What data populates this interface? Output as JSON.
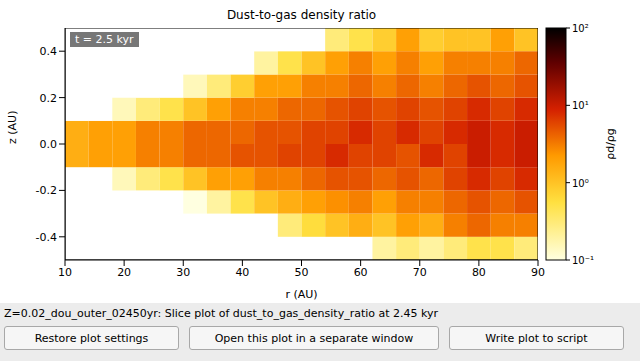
{
  "chart_data": {
    "type": "heatmap",
    "title": "Dust-to-gas density ratio",
    "x_label": "r (AU)",
    "y_label": "z (AU)",
    "annotation": "t = 2.5 kyr",
    "xlim": [
      10,
      90
    ],
    "xticks": [
      10,
      20,
      30,
      40,
      50,
      60,
      70,
      80,
      90
    ],
    "ylim": [
      -0.5,
      0.5
    ],
    "yticks": [
      -0.4,
      -0.2,
      {
        "value": 0,
        "label": "0.0"
      },
      0.2,
      0.4
    ],
    "r_edges": [
      10,
      14,
      18,
      22,
      26,
      30,
      34,
      38,
      42,
      46,
      50,
      54,
      58,
      62,
      66,
      70,
      74,
      78,
      82,
      86,
      90
    ],
    "z_edges": [
      -0.5,
      -0.4,
      -0.3,
      -0.2,
      -0.1,
      0,
      0.1,
      0.2,
      0.3,
      0.4,
      0.5
    ],
    "cells": [
      [
        0.01,
        0.01,
        0.01,
        0.01,
        0.01,
        0.01,
        0.01,
        0.01,
        0.01,
        0.01,
        0.01,
        0.01,
        0.01,
        0.2,
        0.3,
        0.2,
        0.3,
        0.5,
        0.5,
        0.3
      ],
      [
        0.01,
        0.01,
        0.01,
        0.01,
        0.01,
        0.01,
        0.01,
        0.01,
        0.01,
        0.3,
        0.6,
        1,
        1.5,
        1,
        2,
        1.5,
        3,
        4,
        3,
        3
      ],
      [
        0.01,
        0.01,
        0.01,
        0.01,
        0.01,
        0.1,
        0.2,
        0.5,
        1,
        1.5,
        2,
        2.5,
        3,
        2,
        3,
        3,
        4,
        5,
        4,
        5
      ],
      [
        0.01,
        0.01,
        0.15,
        0.3,
        0.5,
        1,
        2,
        2,
        3,
        3,
        4,
        5,
        5,
        4,
        5,
        4,
        6,
        8,
        6,
        8
      ],
      [
        1.5,
        2,
        2,
        3,
        3,
        4,
        4,
        5,
        5,
        6,
        6,
        8,
        6,
        6,
        5,
        8,
        6,
        10,
        8,
        10
      ],
      [
        1.5,
        2,
        2,
        3,
        3,
        4,
        4,
        4,
        5,
        5,
        6,
        6,
        8,
        6,
        8,
        6,
        8,
        10,
        8,
        10
      ],
      [
        0.01,
        0.01,
        0.15,
        0.3,
        0.5,
        1,
        2,
        3,
        3,
        4,
        4,
        5,
        6,
        5,
        6,
        5,
        6,
        8,
        6,
        8
      ],
      [
        0.01,
        0.01,
        0.01,
        0.01,
        0.01,
        0.15,
        0.3,
        0.8,
        2,
        2,
        3,
        3,
        4,
        3,
        4,
        3,
        4,
        5,
        4,
        5
      ],
      [
        0.01,
        0.01,
        0.01,
        0.01,
        0.01,
        0.01,
        0.01,
        0.01,
        0.2,
        0.5,
        1,
        2,
        3,
        2,
        3,
        2,
        3,
        3,
        3,
        4
      ],
      [
        0.01,
        0.01,
        0.01,
        0.01,
        0.01,
        0.01,
        0.01,
        0.01,
        0.01,
        0.01,
        0.01,
        0.3,
        0.5,
        0.8,
        2,
        0.8,
        1,
        1,
        2,
        1
      ]
    ],
    "colorbar_range": [
      0.1,
      100
    ],
    "colorbar_ticks": [
      {
        "value": 0.1,
        "label": "10⁻¹"
      },
      {
        "value": 1,
        "label": "10⁰"
      },
      {
        "value": 10,
        "label": "10¹"
      },
      {
        "value": 100,
        "label": "10²"
      }
    ],
    "colorbar_label": "ρd/ρg"
  },
  "status_text": "Z=0.02_dou_outer_02450yr: Slice plot of dust_to_gas_density_ratio at 2.45 kyr",
  "buttons": [
    "Restore plot settings",
    "Open this plot in a separate window",
    "Write plot to script"
  ]
}
